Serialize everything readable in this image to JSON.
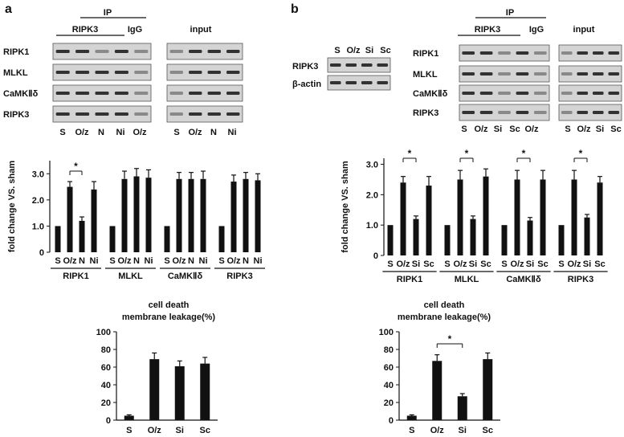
{
  "panels": {
    "a": {
      "letter": "a",
      "blot": {
        "ip_header": "IP",
        "ip_groups": [
          "RIPK3",
          "IgG"
        ],
        "input_header": "input",
        "rows": [
          "RIPK1",
          "MLKL",
          "CaMKⅡδ",
          "RIPK3"
        ],
        "ip_lanes": [
          "S",
          "O/z",
          "N",
          "Ni",
          "O/z"
        ],
        "input_lanes": [
          "S",
          "O/z",
          "N",
          "Ni"
        ]
      }
    },
    "b": {
      "letter": "b",
      "small_blot": {
        "lanes": [
          "S",
          "O/z",
          "Si",
          "Sc"
        ],
        "rows": [
          "RIPK3",
          "β-actin"
        ]
      },
      "blot": {
        "ip_header": "IP",
        "ip_groups": [
          "RIPK3",
          "IgG"
        ],
        "input_header": "input",
        "rows": [
          "RIPK1",
          "MLKL",
          "CaMKⅡδ",
          "RIPK3"
        ],
        "ip_lanes": [
          "S",
          "O/z",
          "Si",
          "Sc",
          "O/z"
        ],
        "input_lanes": [
          "S",
          "O/z",
          "Si",
          "Sc"
        ]
      }
    }
  },
  "chart_data": [
    {
      "id": "a-fold",
      "type": "bar",
      "ylabel": "fold change VS. sham",
      "ylim": [
        0,
        3.5
      ],
      "yticks": [
        "0",
        "1.0",
        "2.0",
        "3.0"
      ],
      "groups": [
        {
          "name": "RIPK1",
          "categories": [
            "S",
            "O/z",
            "N",
            "Ni"
          ],
          "values": [
            1.0,
            2.5,
            1.2,
            2.4
          ],
          "errors": [
            0,
            0.2,
            0.15,
            0.3
          ],
          "sig": "*"
        },
        {
          "name": "MLKL",
          "categories": [
            "S",
            "O/z",
            "N",
            "Ni"
          ],
          "values": [
            1.0,
            2.8,
            2.9,
            2.85
          ],
          "errors": [
            0,
            0.3,
            0.3,
            0.3
          ],
          "sig": ""
        },
        {
          "name": "CaMKⅡδ",
          "categories": [
            "S",
            "O/z",
            "N",
            "Ni"
          ],
          "values": [
            1.0,
            2.8,
            2.8,
            2.8
          ],
          "errors": [
            0,
            0.25,
            0.25,
            0.3
          ],
          "sig": ""
        },
        {
          "name": "RIPK3",
          "categories": [
            "S",
            "O/z",
            "N",
            "Ni"
          ],
          "values": [
            1.0,
            2.7,
            2.8,
            2.75
          ],
          "errors": [
            0,
            0.25,
            0.25,
            0.25
          ],
          "sig": ""
        }
      ]
    },
    {
      "id": "b-fold",
      "type": "bar",
      "ylabel": "fold change VS. sham",
      "ylim": [
        0,
        3.2
      ],
      "yticks": [
        "0",
        "1.0",
        "2.0",
        "3.0"
      ],
      "groups": [
        {
          "name": "RIPK1",
          "categories": [
            "S",
            "O/z",
            "Si",
            "Sc"
          ],
          "values": [
            1.0,
            2.4,
            1.2,
            2.3
          ],
          "errors": [
            0,
            0.2,
            0.1,
            0.3
          ],
          "sig": "*"
        },
        {
          "name": "MLKL",
          "categories": [
            "S",
            "O/z",
            "Si",
            "Sc"
          ],
          "values": [
            1.0,
            2.5,
            1.2,
            2.6
          ],
          "errors": [
            0,
            0.3,
            0.1,
            0.25
          ],
          "sig": "*"
        },
        {
          "name": "CaMKⅡδ",
          "categories": [
            "S",
            "O/z",
            "Si",
            "Sc"
          ],
          "values": [
            1.0,
            2.5,
            1.15,
            2.5
          ],
          "errors": [
            0,
            0.3,
            0.1,
            0.3
          ],
          "sig": "*"
        },
        {
          "name": "RIPK3",
          "categories": [
            "S",
            "O/z",
            "Si",
            "Sc"
          ],
          "values": [
            1.0,
            2.5,
            1.25,
            2.4
          ],
          "errors": [
            0,
            0.3,
            0.1,
            0.2
          ],
          "sig": "*"
        }
      ]
    },
    {
      "id": "a-death",
      "type": "bar",
      "title": "cell death\nmembrane leakage(%)",
      "ylim": [
        0,
        100
      ],
      "yticks": [
        "0",
        "20",
        "40",
        "60",
        "80",
        "100"
      ],
      "categories": [
        "S",
        "O/z",
        "Si",
        "Sc"
      ],
      "values": [
        5,
        69,
        61,
        64
      ],
      "errors": [
        1,
        7,
        6,
        7
      ],
      "sig": null
    },
    {
      "id": "b-death",
      "type": "bar",
      "title": "cell death\nmembrane leakage(%)",
      "ylim": [
        0,
        100
      ],
      "yticks": [
        "0",
        "20",
        "40",
        "60",
        "80",
        "100"
      ],
      "categories": [
        "S",
        "O/z",
        "Si",
        "Sc"
      ],
      "values": [
        5,
        67,
        27,
        69
      ],
      "errors": [
        1,
        7,
        3,
        7
      ],
      "sig": {
        "from": 1,
        "to": 2,
        "label": "*"
      }
    }
  ]
}
